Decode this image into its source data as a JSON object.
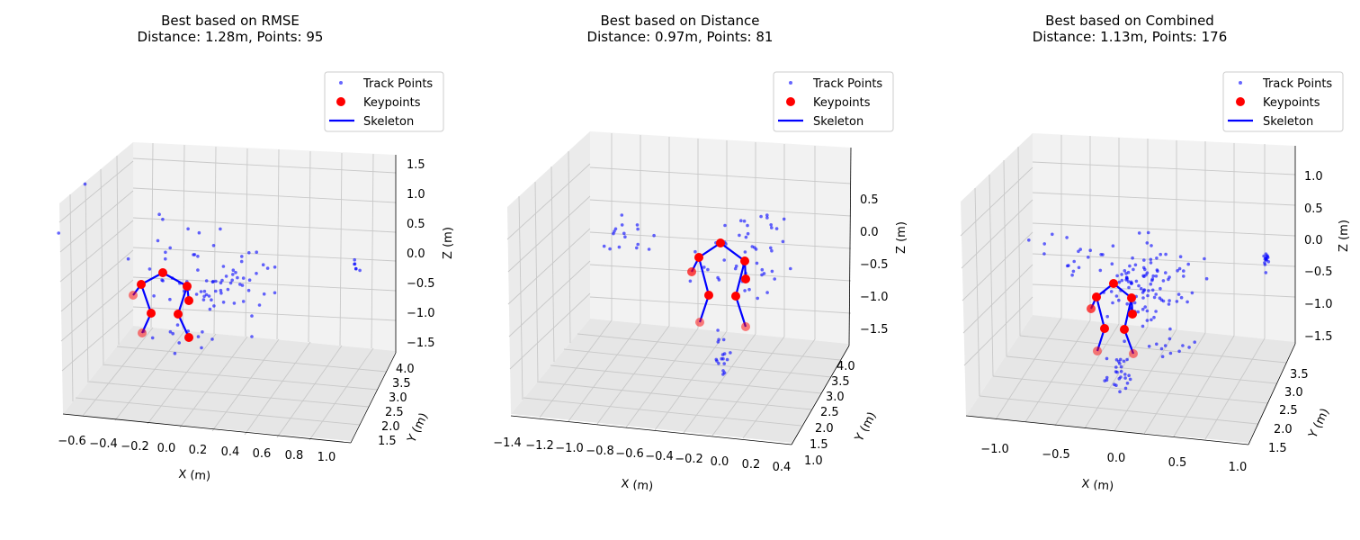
{
  "chart_data": [
    {
      "type": "scatter",
      "title": "Best based on RMSE",
      "subtitle": "Distance: 1.28m, Points: 95",
      "xlabel": "X (m)",
      "ylabel": "Y (m)",
      "zlabel": "Z (m)",
      "x_ticks": [
        "−0.6",
        "−0.4",
        "−0.2",
        "0.0",
        "0.2",
        "0.4",
        "0.6",
        "0.8",
        "1.0"
      ],
      "y_ticks": [
        "1.5",
        "2.0",
        "2.5",
        "3.0",
        "3.5",
        "4.0"
      ],
      "z_ticks": [
        "−1.5",
        "−1.0",
        "−0.5",
        "0.0",
        "0.5",
        "1.0",
        "1.5"
      ],
      "legend": [
        "Track Points",
        "Keypoints",
        "Skeleton"
      ],
      "legend_position": "top-right",
      "grid": true,
      "colors": {
        "track": "#0000ff",
        "keypoint": "#ff0000",
        "skeleton": "#0000ff"
      }
    },
    {
      "type": "scatter",
      "title": "Best based on Distance",
      "subtitle": "Distance: 0.97m, Points: 81",
      "xlabel": "X (m)",
      "ylabel": "Y (m)",
      "zlabel": "Z (m)",
      "x_ticks": [
        "−1.4",
        "−1.2",
        "−1.0",
        "−0.8",
        "−0.6",
        "−0.4",
        "−0.2",
        "0.0",
        "0.2",
        "0.4"
      ],
      "y_ticks": [
        "1.0",
        "1.5",
        "2.0",
        "2.5",
        "3.0",
        "3.5",
        "4.0"
      ],
      "z_ticks": [
        "−1.5",
        "−1.0",
        "−0.5",
        "0.0",
        "0.5"
      ],
      "legend": [
        "Track Points",
        "Keypoints",
        "Skeleton"
      ],
      "legend_position": "top-right",
      "grid": true,
      "colors": {
        "track": "#0000ff",
        "keypoint": "#ff0000",
        "skeleton": "#0000ff"
      }
    },
    {
      "type": "scatter",
      "title": "Best based on Combined",
      "subtitle": "Distance: 1.13m, Points: 176",
      "xlabel": "X (m)",
      "ylabel": "Y (m)",
      "zlabel": "Z (m)",
      "x_ticks": [
        "−1.0",
        "−0.5",
        "0.0",
        "0.5",
        "1.0"
      ],
      "y_ticks": [
        "1.5",
        "2.0",
        "2.5",
        "3.0",
        "3.5"
      ],
      "z_ticks": [
        "−1.5",
        "−1.0",
        "−0.5",
        "0.0",
        "0.5",
        "1.0"
      ],
      "legend": [
        "Track Points",
        "Keypoints",
        "Skeleton"
      ],
      "legend_position": "top-right",
      "grid": true,
      "colors": {
        "track": "#0000ff",
        "keypoint": "#ff0000",
        "skeleton": "#0000ff"
      }
    }
  ]
}
